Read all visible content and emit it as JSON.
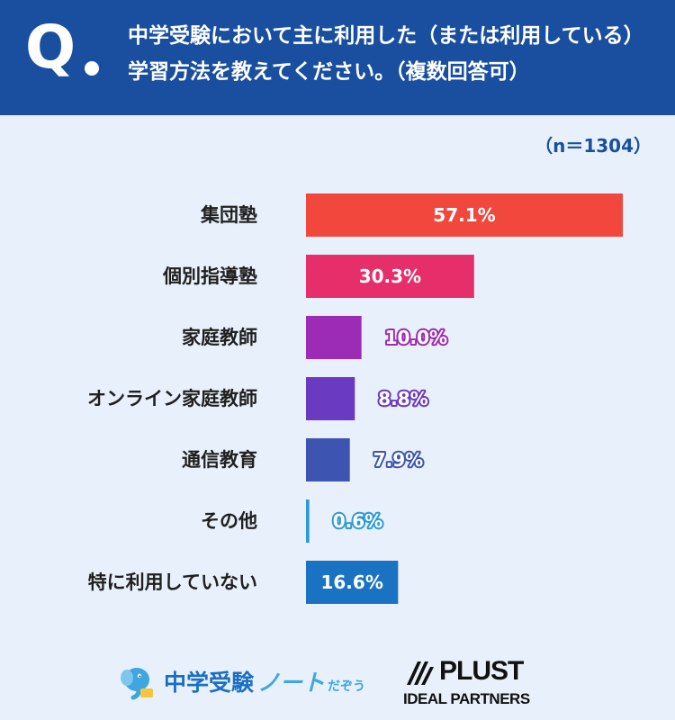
{
  "header": {
    "q_mark": "Q",
    "question": "中学受験において主に利用した（または利用している）学習方法を教えてください。（複数回答可）"
  },
  "sample_size": "（n＝1304）",
  "chart_data": {
    "type": "bar",
    "orientation": "horizontal",
    "categories": [
      "集団塾",
      "個別指導塾",
      "家庭教師",
      "オンライン家庭教師",
      "通信教育",
      "その他",
      "特に利用していない"
    ],
    "values": [
      57.1,
      30.3,
      10.0,
      8.8,
      7.9,
      0.6,
      16.6
    ],
    "value_labels": [
      "57.1%",
      "30.3%",
      "10.0%",
      "8.8%",
      "7.9%",
      "0.6%",
      "16.6%"
    ],
    "unit": "%",
    "colors": [
      "#f2473c",
      "#e62e6b",
      "#9c2bb5",
      "#6a3bc0",
      "#3d55b0",
      "#2b9bd6",
      "#1a73c2"
    ],
    "xlim": [
      0,
      57.1
    ],
    "grid": false,
    "legend": "none"
  },
  "footer": {
    "brand_left_main": "中学受験",
    "brand_left_accent": "ノート",
    "brand_left_small": "だぞう",
    "brand_left_icon": "elephant-icon",
    "brand_right_name": "PLUST",
    "brand_right_sub": "IDEAL PARTNERS",
    "brand_right_icon": "plust-logo-icon"
  }
}
